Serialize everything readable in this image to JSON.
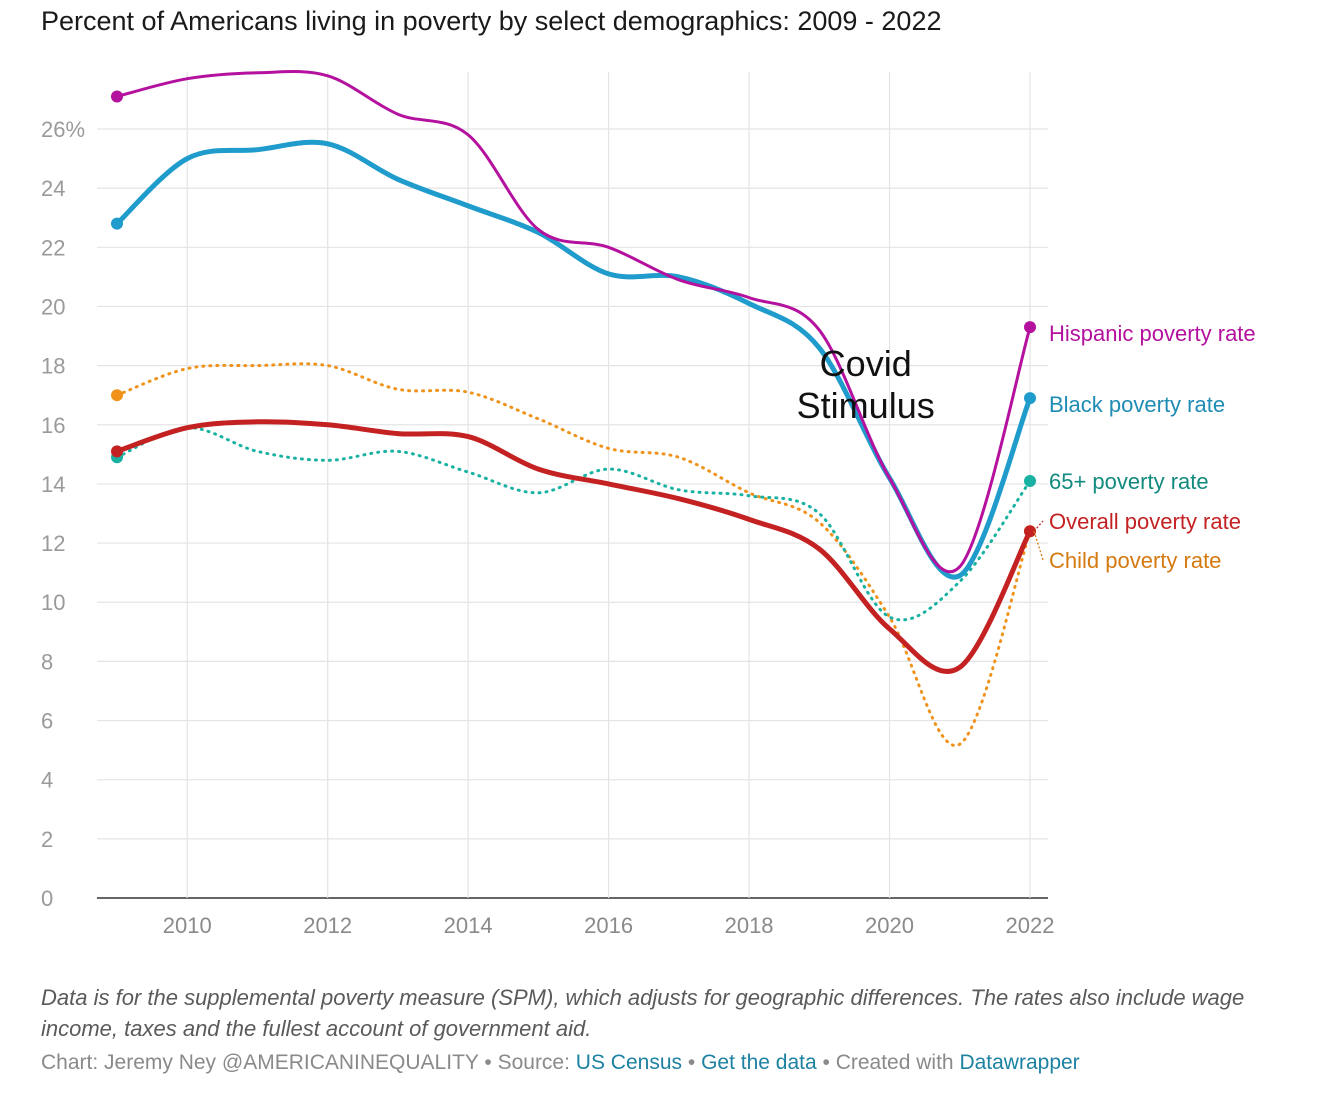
{
  "title": "Percent of Americans living in poverty by select demographics: 2009 - 2022",
  "note": "Data is for the supplemental poverty measure (SPM), which adjusts for geographic differences. The rates also include wage income, taxes and the fullest account of government aid.",
  "footer": {
    "chart_prefix": "Chart: Jeremy Ney @AMERICANINEQUALITY",
    "sep": "•",
    "source_prefix": "Source:",
    "source_link": "US Census",
    "data_link": "Get the data",
    "created_prefix": "Created with",
    "created_link": "Datawrapper"
  },
  "chart_data": {
    "type": "line",
    "title": "Percent of Americans living in poverty by select demographics: 2009 - 2022",
    "xlabel": "",
    "ylabel": "",
    "x": [
      2009,
      2010,
      2011,
      2012,
      2013,
      2014,
      2015,
      2016,
      2017,
      2018,
      2019,
      2020,
      2021,
      2022
    ],
    "xlim": [
      2008.75,
      2022.3
    ],
    "ylim": [
      0,
      27.5
    ],
    "x_ticks": [
      "2010",
      "2012",
      "2014",
      "2016",
      "2018",
      "2020",
      "2022"
    ],
    "y_ticks": [
      "0",
      "2",
      "4",
      "6",
      "8",
      "10",
      "12",
      "14",
      "16",
      "18",
      "20",
      "22",
      "24",
      "26%"
    ],
    "annotation": {
      "line1": "Covid",
      "line2": "Stimulus",
      "x": 2020.7,
      "y": 17.5
    },
    "series": [
      {
        "name": "Child poverty rate",
        "color": "#f0921a",
        "label_color": "#d57a10",
        "dashed": true,
        "width": 3,
        "values": [
          17.0,
          17.9,
          18.0,
          18.0,
          17.2,
          17.1,
          16.2,
          15.2,
          14.9,
          13.7,
          12.7,
          9.5,
          5.2,
          12.4
        ]
      },
      {
        "name": "65+ poverty rate",
        "color": "#19b2a2",
        "label_color": "#128a7e",
        "dashed": true,
        "width": 3,
        "values": [
          14.9,
          15.9,
          15.1,
          14.8,
          15.1,
          14.4,
          13.7,
          14.5,
          13.8,
          13.6,
          13.0,
          9.5,
          10.7,
          14.1
        ]
      },
      {
        "name": "Overall poverty rate",
        "color": "#c42222",
        "label_color": "#c42222",
        "dashed": false,
        "width": 5,
        "values": [
          15.1,
          15.9,
          16.1,
          16.0,
          15.7,
          15.6,
          14.5,
          14.0,
          13.5,
          12.8,
          11.8,
          9.1,
          7.8,
          12.4
        ]
      },
      {
        "name": "Black poverty rate",
        "color": "#1f9ccc",
        "label_color": "#1f8cb5",
        "dashed": false,
        "width": 5,
        "values": [
          22.8,
          25.0,
          25.3,
          25.5,
          24.3,
          23.4,
          22.5,
          21.1,
          21.0,
          20.1,
          18.6,
          14.2,
          10.9,
          16.9
        ]
      },
      {
        "name": "Hispanic poverty rate",
        "color": "#b4119e",
        "label_color": "#b4119e",
        "dashed": false,
        "width": 3,
        "values": [
          27.1,
          27.7,
          27.9,
          27.8,
          26.5,
          25.8,
          22.6,
          22.0,
          20.9,
          20.3,
          19.2,
          14.2,
          11.2,
          19.3
        ]
      }
    ],
    "label_order": [
      "Hispanic poverty rate",
      "Black poverty rate",
      "65+ poverty rate",
      "Overall poverty rate",
      "Child poverty rate"
    ]
  }
}
